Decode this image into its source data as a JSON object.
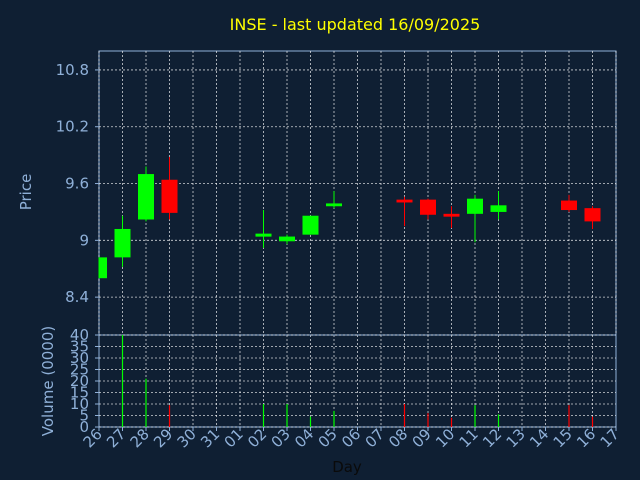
{
  "colors": {
    "background": "#0f1f33",
    "axis": "#8fb0d8",
    "title": "#ffff00",
    "up": "#00ff00",
    "down": "#ff0000",
    "grid": "#ffffff"
  },
  "chart_data": [
    {
      "type": "candlestick",
      "title": "INSE - last updated 16/09/2025",
      "ylabel": "Price",
      "ylim": [
        8.0,
        11.0
      ],
      "yticks": [
        "8.4",
        "9",
        "9.6",
        "10.2",
        "10.8"
      ],
      "grid": true,
      "candles": [
        {
          "day": "26",
          "open": 8.6,
          "close": 8.82,
          "high": 8.82,
          "low": 8.6
        },
        {
          "day": "27",
          "open": 8.82,
          "close": 9.12,
          "high": 9.26,
          "low": 8.72
        },
        {
          "day": "28",
          "open": 9.22,
          "close": 9.7,
          "high": 9.78,
          "low": 9.2
        },
        {
          "day": "29",
          "open": 9.64,
          "close": 9.29,
          "high": 9.88,
          "low": 9.22
        },
        {
          "day": "02",
          "open": 9.05,
          "close": 9.06,
          "high": 9.32,
          "low": 8.92
        },
        {
          "day": "03",
          "open": 8.99,
          "close": 9.04,
          "high": 9.06,
          "low": 8.96
        },
        {
          "day": "04",
          "open": 9.06,
          "close": 9.26,
          "high": 9.26,
          "low": 9.06
        },
        {
          "day": "05",
          "open": 9.36,
          "close": 9.39,
          "high": 9.52,
          "low": 9.34
        },
        {
          "day": "08",
          "open": 9.43,
          "close": 9.4,
          "high": 9.46,
          "low": 9.15
        },
        {
          "day": "09",
          "open": 9.43,
          "close": 9.27,
          "high": 9.44,
          "low": 9.22
        },
        {
          "day": "10",
          "open": 9.28,
          "close": 9.25,
          "high": 9.36,
          "low": 9.13
        },
        {
          "day": "11",
          "open": 9.28,
          "close": 9.44,
          "high": 9.48,
          "low": 8.98
        },
        {
          "day": "12",
          "open": 9.3,
          "close": 9.37,
          "high": 9.52,
          "low": 9.22
        },
        {
          "day": "15",
          "open": 9.42,
          "close": 9.32,
          "high": 9.48,
          "low": 9.3
        },
        {
          "day": "16",
          "open": 9.34,
          "close": 9.2,
          "high": 9.36,
          "low": 9.12
        }
      ]
    },
    {
      "type": "bar",
      "ylabel": "Volume (0000)",
      "xlabel": "Day",
      "ylim": [
        0,
        40
      ],
      "yticks": [
        "0",
        "5",
        "10",
        "15",
        "20",
        "25",
        "30",
        "35",
        "40"
      ],
      "grid": true,
      "categories": [
        "26",
        "27",
        "28",
        "29",
        "30",
        "31",
        "01",
        "02",
        "03",
        "04",
        "05",
        "06",
        "07",
        "08",
        "09",
        "10",
        "11",
        "12",
        "13",
        "14",
        "15",
        "16",
        "17"
      ],
      "values": [
        0,
        40,
        21,
        9.5,
        0,
        0,
        0,
        10,
        10,
        4.5,
        7,
        0,
        0,
        10,
        6,
        4,
        9.5,
        5.5,
        0,
        0,
        9.5,
        4.5,
        0
      ],
      "directions": [
        "up",
        "up",
        "up",
        "down",
        "",
        "",
        "",
        "up",
        "up",
        "up",
        "up",
        "",
        "",
        "down",
        "down",
        "down",
        "up",
        "up",
        "",
        "",
        "down",
        "down",
        ""
      ]
    }
  ]
}
